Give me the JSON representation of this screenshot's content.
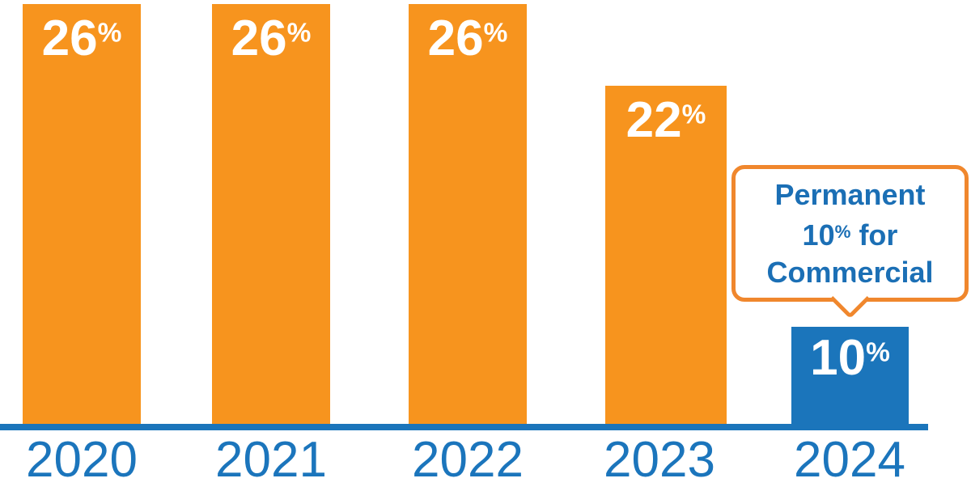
{
  "chart_data": {
    "type": "bar",
    "title": "",
    "xlabel": "",
    "ylabel": "",
    "unit": "%",
    "categories": [
      "2020",
      "2021",
      "2022",
      "2023",
      "2024"
    ],
    "series": [
      {
        "name": "percentage",
        "values": [
          26,
          26,
          26,
          22,
          10
        ]
      }
    ],
    "ylim": [
      0,
      26
    ],
    "grid": false,
    "legend": "none",
    "bars": [
      {
        "year": "2020",
        "value": "26",
        "unit": "%",
        "color": "#F7941E"
      },
      {
        "year": "2021",
        "value": "26",
        "unit": "%",
        "color": "#F7941E"
      },
      {
        "year": "2022",
        "value": "26",
        "unit": "%",
        "color": "#F7941E"
      },
      {
        "year": "2023",
        "value": "22",
        "unit": "%",
        "color": "#F7941E"
      },
      {
        "year": "2024",
        "value": "10",
        "unit": "%",
        "color": "#1B75BB"
      }
    ],
    "callout": {
      "full_text": "Permanent 10% for Commercial",
      "line1": "Permanent",
      "line2_value": "10",
      "line2_unit": "%",
      "line2_suffix": " for",
      "line3": "Commercial",
      "attached_to": "2024"
    },
    "colors": {
      "bar_orange": "#F7941E",
      "bar_blue": "#1B75BB",
      "axis_line": "#1B75BB",
      "bar_label_text": "#FFFFFF",
      "year_label_text": "#1B75BC",
      "callout_border": "#F0872D",
      "callout_text": "#1B6FB5",
      "background": "#FFFFFF"
    }
  }
}
